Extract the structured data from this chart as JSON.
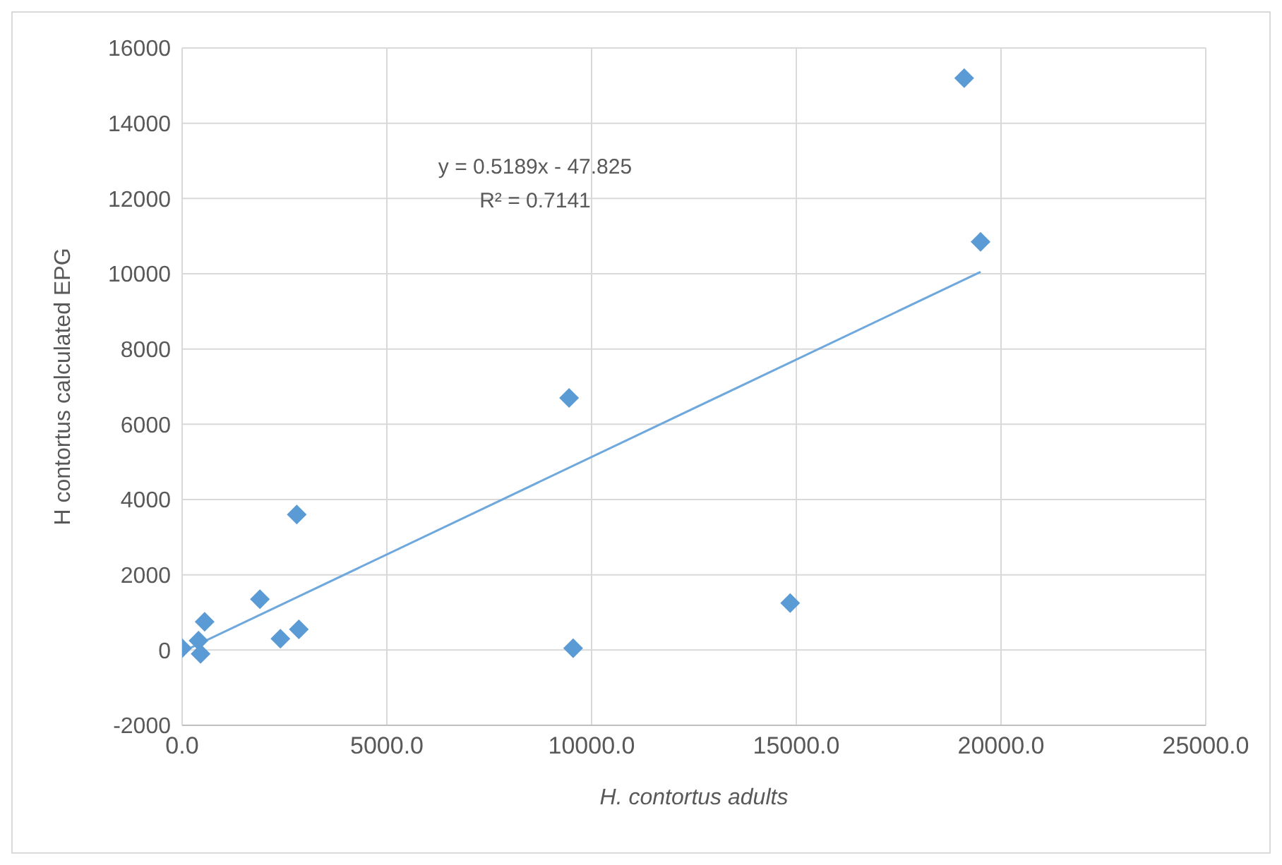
{
  "chart_data": {
    "type": "scatter",
    "xlabel": "H. contortus adults",
    "ylabel": "H contortus calculated EPG",
    "xlim": [
      0,
      25000
    ],
    "xticks": [
      {
        "value": 0,
        "label": "0.0"
      },
      {
        "value": 5000,
        "label": "5000.0"
      },
      {
        "value": 10000,
        "label": "10000.0"
      },
      {
        "value": 15000,
        "label": "15000.0"
      },
      {
        "value": 20000,
        "label": "20000.0"
      },
      {
        "value": 25000,
        "label": "25000.0"
      }
    ],
    "ylim": [
      -2000,
      16000
    ],
    "yticks": [
      -2000,
      0,
      2000,
      4000,
      6000,
      8000,
      10000,
      12000,
      14000,
      16000
    ],
    "grid": true,
    "marker": "diamond",
    "annotations": [
      "y = 0.5189x - 47.825",
      "R² = 0.7141"
    ],
    "series": [
      {
        "color": "#5b9bd5",
        "x": [
          19100,
          19500,
          9450,
          2800,
          1900,
          550,
          2400,
          2850,
          14850,
          9550,
          0,
          400,
          450
        ],
        "values": [
          15200,
          10850,
          6700,
          3600,
          1350,
          750,
          300,
          550,
          1250,
          50,
          50,
          250,
          -100
        ]
      },
      {
        "type": "line",
        "color": "#6fa8dc",
        "marker": "none",
        "x": [
          0,
          19500
        ],
        "values": [
          -50,
          10050
        ]
      }
    ]
  }
}
